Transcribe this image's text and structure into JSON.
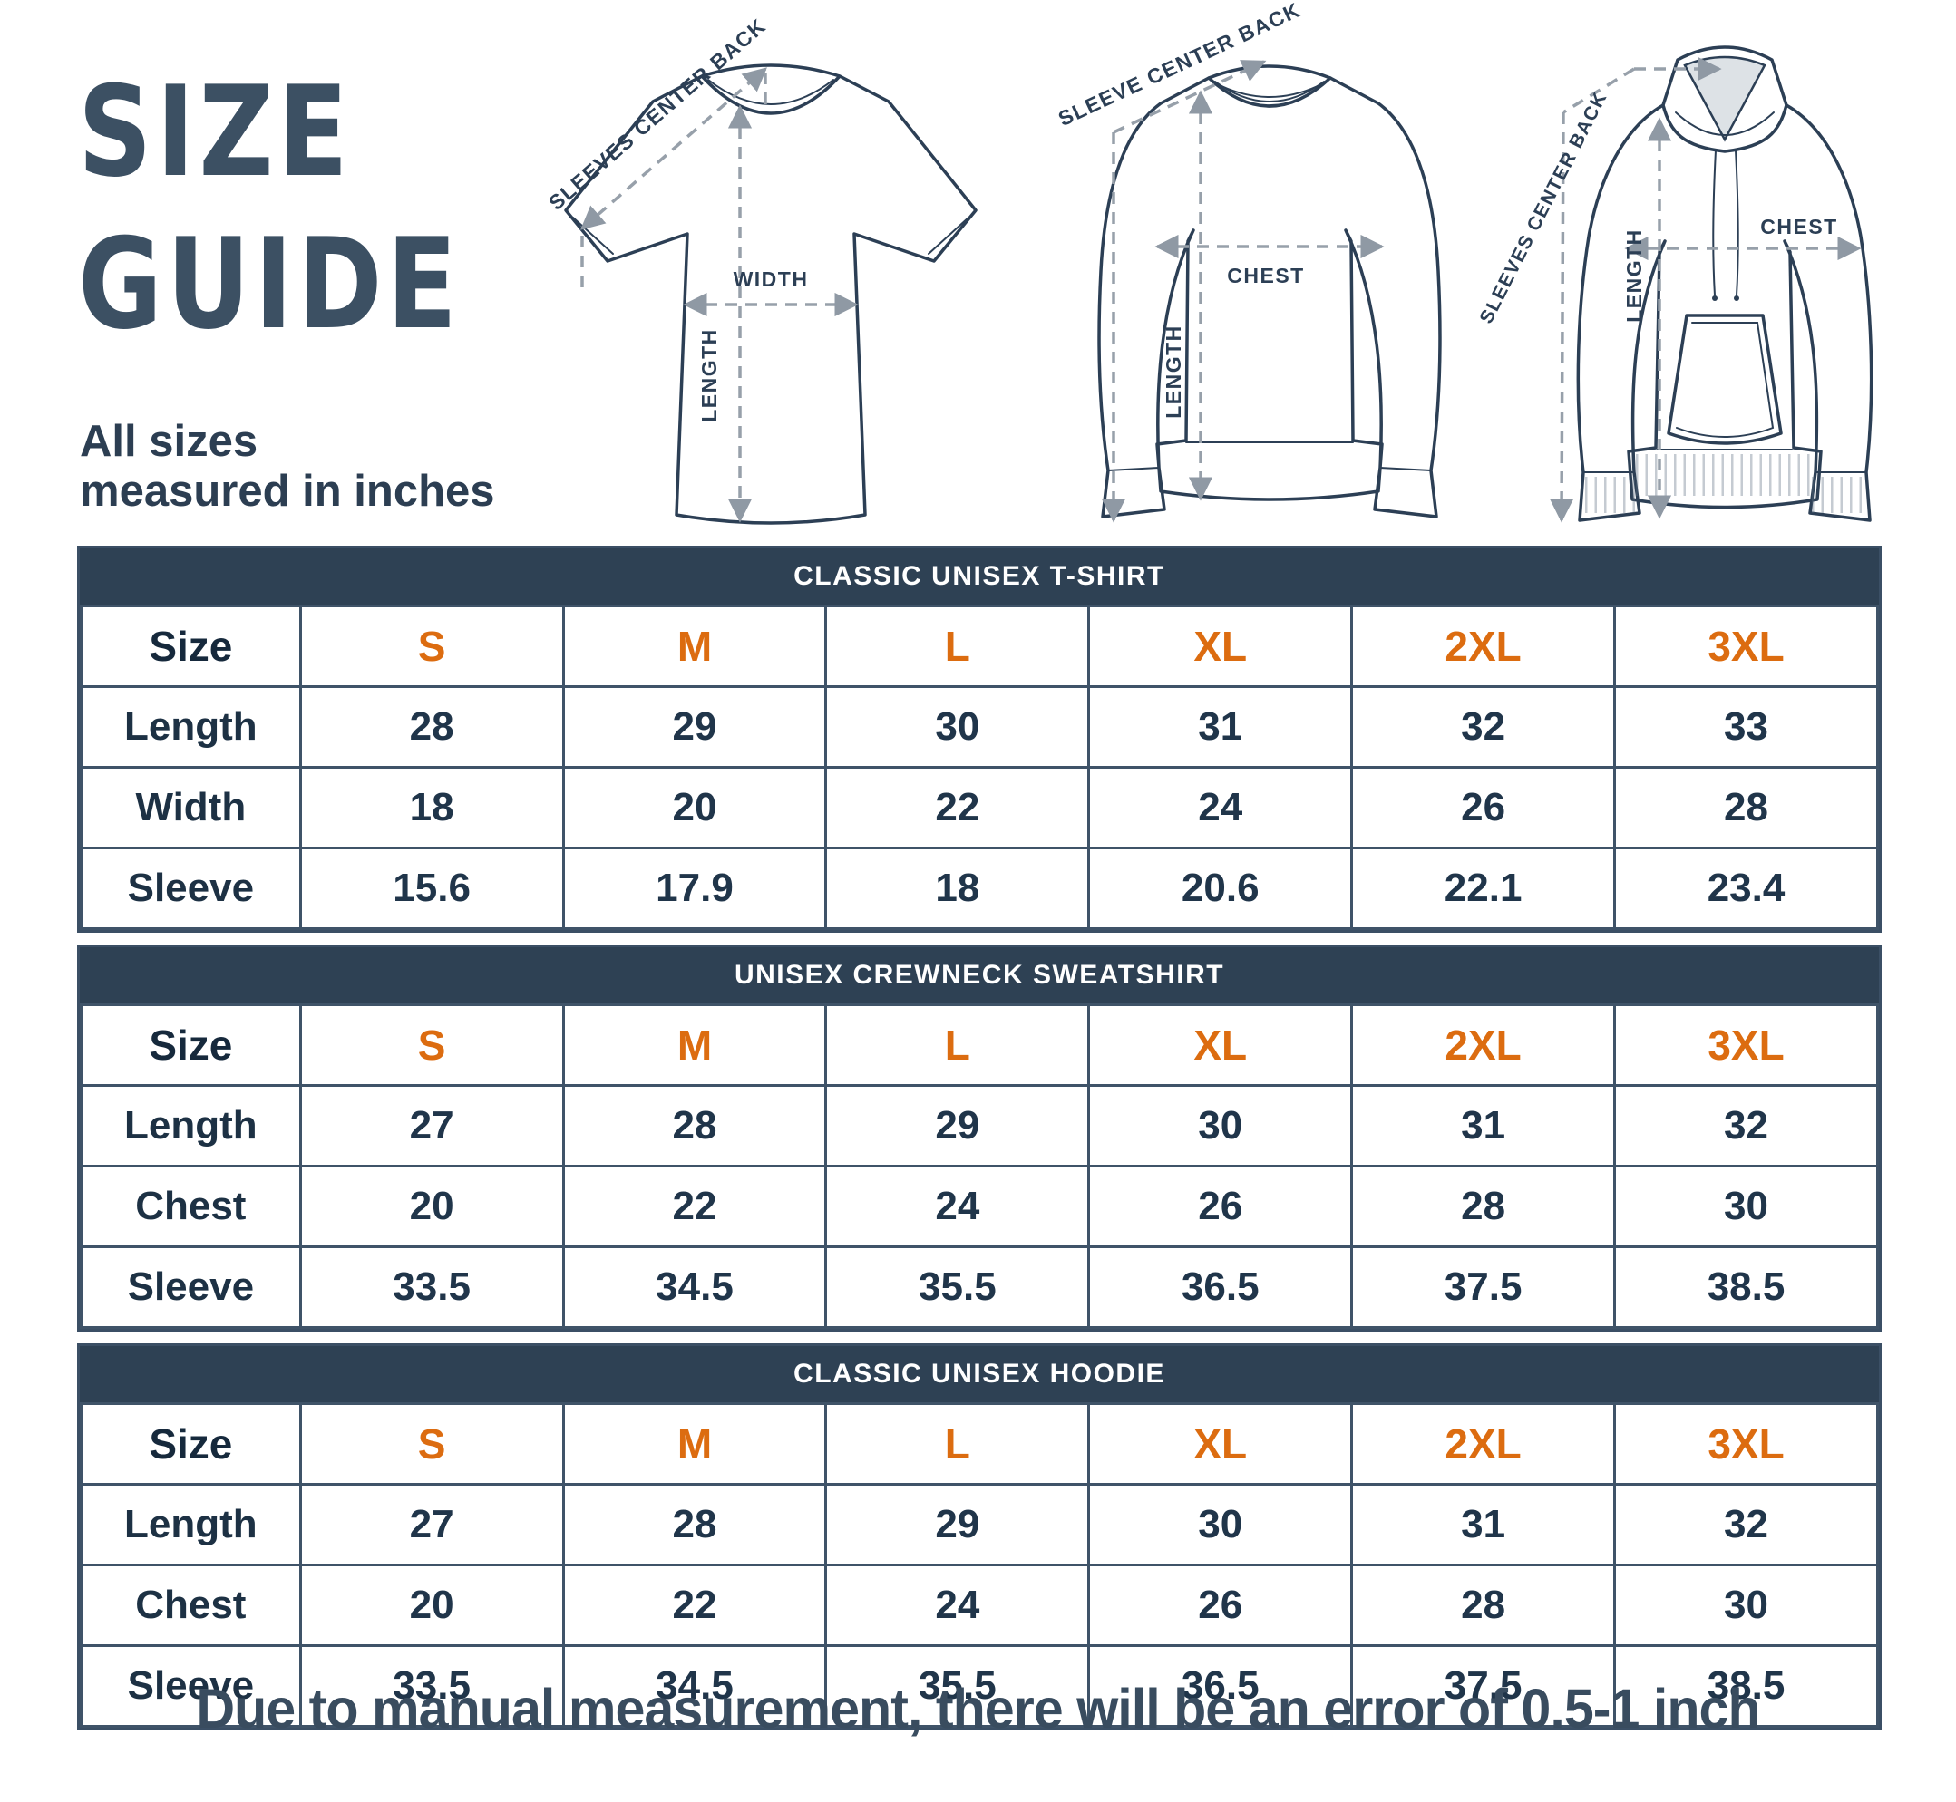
{
  "title": {
    "line1": "SIZE",
    "line2": "GUIDE"
  },
  "subtitle": {
    "line1": "All sizes",
    "line2": "measured in inches"
  },
  "footer": {
    "note": "Due to manual measurement, there will be an error of 0.5-1 inch"
  },
  "colors": {
    "navy_header": "#2e4154",
    "border": "#3f5368",
    "text_dark": "#20354a",
    "accent_orange": "#dc6c10",
    "title_slate": "#3c5063",
    "arrow_gray": "#97a0aa",
    "outline": "#2c3f55"
  },
  "illustrations": {
    "tshirt": {
      "name": "t-shirt",
      "diagonal_label": "SLEEVES CENTER BACK",
      "width_label": "WIDTH",
      "length_label": "LENGTH"
    },
    "sweatshirt": {
      "name": "crewneck sweatshirt",
      "diagonal_label": "SLEEVE CENTER BACK",
      "chest_label": "CHEST",
      "length_label": "LENGTH"
    },
    "hoodie": {
      "name": "hoodie",
      "diagonal_label": "SLEEVES CENTER BACK",
      "chest_label": "CHEST",
      "length_label": "LENGTH"
    }
  },
  "tables": [
    {
      "title": "CLASSIC UNISEX T-SHIRT",
      "size_label": "Size",
      "sizes": [
        "S",
        "M",
        "L",
        "XL",
        "2XL",
        "3XL"
      ],
      "rows": [
        {
          "label": "Length",
          "values": [
            "28",
            "29",
            "30",
            "31",
            "32",
            "33"
          ]
        },
        {
          "label": "Width",
          "values": [
            "18",
            "20",
            "22",
            "24",
            "26",
            "28"
          ]
        },
        {
          "label": "Sleeve",
          "values": [
            "15.6",
            "17.9",
            "18",
            "20.6",
            "22.1",
            "23.4"
          ]
        }
      ]
    },
    {
      "title": "UNISEX CREWNECK SWEATSHIRT",
      "size_label": "Size",
      "sizes": [
        "S",
        "M",
        "L",
        "XL",
        "2XL",
        "3XL"
      ],
      "rows": [
        {
          "label": "Length",
          "values": [
            "27",
            "28",
            "29",
            "30",
            "31",
            "32"
          ]
        },
        {
          "label": "Chest",
          "values": [
            "20",
            "22",
            "24",
            "26",
            "28",
            "30"
          ]
        },
        {
          "label": "Sleeve",
          "values": [
            "33.5",
            "34.5",
            "35.5",
            "36.5",
            "37.5",
            "38.5"
          ]
        }
      ]
    },
    {
      "title": "CLASSIC UNISEX HOODIE",
      "size_label": "Size",
      "sizes": [
        "S",
        "M",
        "L",
        "XL",
        "2XL",
        "3XL"
      ],
      "rows": [
        {
          "label": "Length",
          "values": [
            "27",
            "28",
            "29",
            "30",
            "31",
            "32"
          ]
        },
        {
          "label": "Chest",
          "values": [
            "20",
            "22",
            "24",
            "26",
            "28",
            "30"
          ]
        },
        {
          "label": "Sleeve",
          "values": [
            "33.5",
            "34.5",
            "35.5",
            "36.5",
            "37.5",
            "38.5"
          ]
        }
      ]
    }
  ]
}
